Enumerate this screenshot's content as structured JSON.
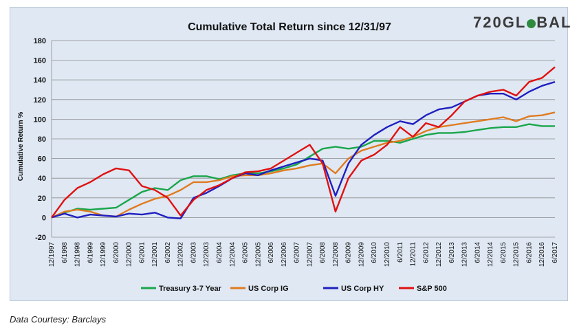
{
  "logo": {
    "text_left": "720GL",
    "text_right": "BAL",
    "accent": "#2e8b3e"
  },
  "source": "Data Courtesy: Barclays",
  "chart_data": {
    "type": "line",
    "title": "Cumulative Total Return since 12/31/97",
    "xlabel": "",
    "ylabel": "Cumulative Return %",
    "ylim": [
      -20,
      180
    ],
    "yticks": [
      -20,
      0,
      20,
      40,
      60,
      80,
      100,
      120,
      140,
      160,
      180
    ],
    "grid": true,
    "legend": "bottom",
    "xticks": [
      "12/1997",
      "6/1998",
      "12/1998",
      "6/1999",
      "12/1999",
      "6/2000",
      "12/2000",
      "6/2001",
      "12/2001",
      "6/2002",
      "12/2002",
      "6/2003",
      "12/2003",
      "6/2004",
      "12/2004",
      "6/2005",
      "12/2005",
      "6/2006",
      "12/2006",
      "6/2007",
      "12/2007",
      "6/2008",
      "12/2008",
      "6/2009",
      "12/2009",
      "6/2010",
      "12/2010",
      "6/2011",
      "12/2011",
      "6/2012",
      "12/2012",
      "6/2013",
      "12/2013",
      "6/2014",
      "12/2014",
      "6/2015",
      "12/2015",
      "6/2016",
      "12/2016",
      "6/2017"
    ],
    "series": [
      {
        "name": "Treasury 3-7 Year",
        "color": "#1aa64b",
        "values": [
          0,
          5,
          9,
          8,
          9,
          10,
          18,
          26,
          30,
          28,
          38,
          42,
          42,
          39,
          43,
          45,
          45,
          47,
          50,
          54,
          62,
          70,
          72,
          70,
          72,
          78,
          78,
          76,
          80,
          84,
          86,
          86,
          87,
          89,
          91,
          92,
          92,
          95,
          93,
          93
        ]
      },
      {
        "name": "US Corp IG",
        "color": "#e07b1f",
        "values": [
          0,
          6,
          8,
          6,
          2,
          1,
          8,
          14,
          19,
          22,
          28,
          36,
          36,
          38,
          42,
          43,
          43,
          45,
          48,
          50,
          53,
          55,
          45,
          60,
          68,
          72,
          76,
          78,
          82,
          88,
          92,
          94,
          96,
          98,
          100,
          102,
          98,
          103,
          104,
          107
        ]
      },
      {
        "name": "US Corp HY",
        "color": "#1f1fbf",
        "values": [
          0,
          4,
          0,
          3,
          2,
          1,
          4,
          3,
          5,
          0,
          -1,
          20,
          25,
          32,
          40,
          45,
          43,
          48,
          52,
          56,
          60,
          58,
          22,
          55,
          74,
          84,
          92,
          98,
          95,
          104,
          110,
          112,
          118,
          124,
          126,
          126,
          120,
          128,
          134,
          138
        ]
      },
      {
        "name": "S&P 500",
        "color": "#e01010",
        "values": [
          0,
          18,
          30,
          36,
          44,
          50,
          48,
          32,
          28,
          20,
          2,
          18,
          28,
          33,
          40,
          46,
          47,
          50,
          58,
          66,
          74,
          55,
          6,
          40,
          58,
          64,
          74,
          92,
          82,
          96,
          92,
          104,
          118,
          124,
          128,
          130,
          124,
          138,
          142,
          153
        ]
      }
    ]
  }
}
